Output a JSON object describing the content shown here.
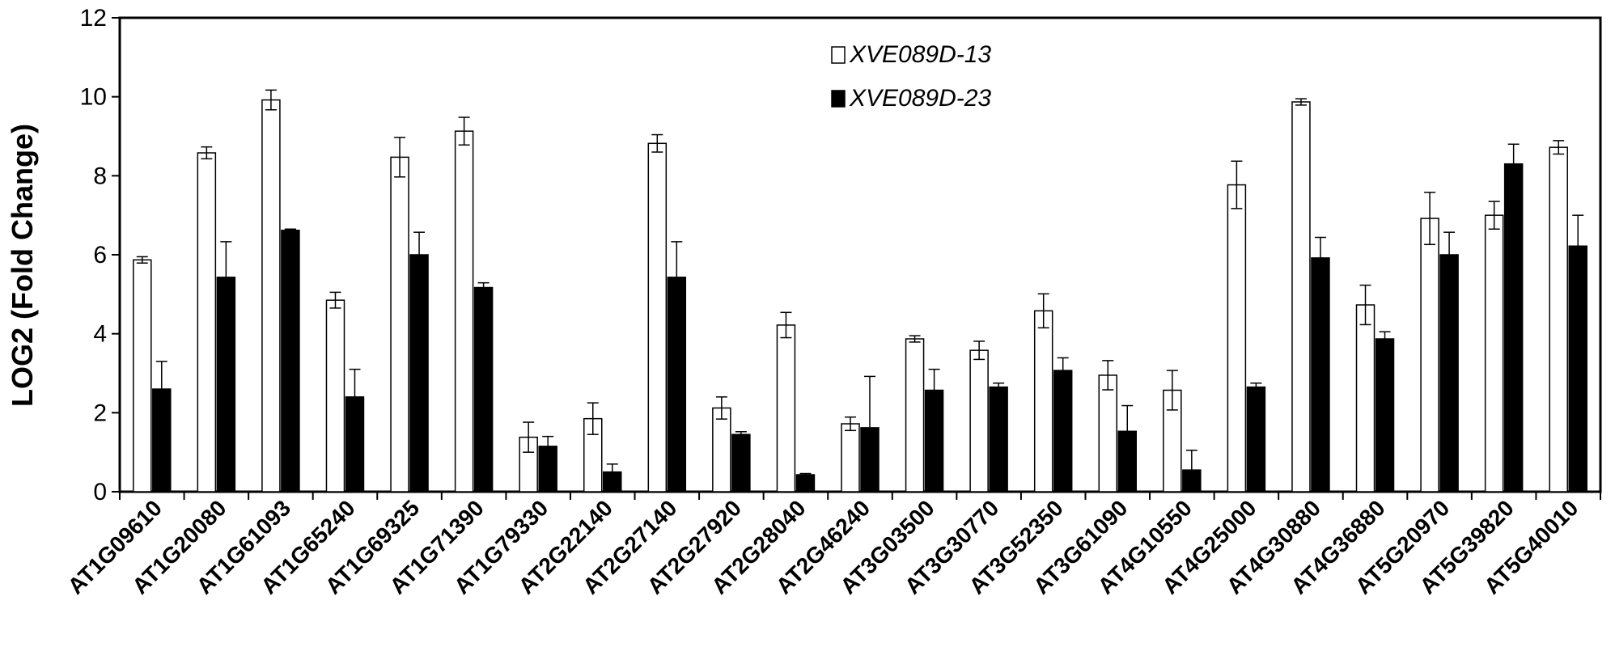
{
  "chart_data": {
    "type": "bar",
    "ylabel": "LOG2 (Fold Change)",
    "xlabel": "",
    "ylim": [
      0,
      12
    ],
    "yticks": [
      "0",
      "2",
      "4",
      "6",
      "8",
      "10",
      "12"
    ],
    "grid": false,
    "legend_position": "top-center",
    "categories": [
      "AT1G09610",
      "AT1G20080",
      "AT1G61093",
      "AT1G65240",
      "AT1G69325",
      "AT1G71390",
      "AT1G79330",
      "AT2G22140",
      "AT2G27140",
      "AT2G27920",
      "AT2G28040",
      "AT2G46240",
      "AT3G03500",
      "AT3G30770",
      "AT3G52350",
      "AT3G61090",
      "AT4G10550",
      "AT4G25000",
      "AT4G30880",
      "AT4G36880",
      "AT5G20970",
      "AT5G39820",
      "AT5G40010"
    ],
    "series": [
      {
        "name": "XVE089D-13",
        "fill": "#ffffff",
        "values": [
          5.87,
          8.58,
          9.92,
          4.85,
          8.47,
          9.13,
          1.38,
          1.85,
          8.82,
          2.12,
          4.22,
          1.72,
          3.87,
          3.58,
          4.58,
          2.95,
          2.57,
          7.77,
          9.87,
          4.73,
          6.92,
          7.0,
          8.72
        ],
        "errors": [
          0.08,
          0.15,
          0.25,
          0.2,
          0.5,
          0.35,
          0.38,
          0.4,
          0.22,
          0.28,
          0.32,
          0.17,
          0.08,
          0.23,
          0.43,
          0.37,
          0.5,
          0.6,
          0.08,
          0.5,
          0.66,
          0.35,
          0.17
        ]
      },
      {
        "name": "XVE089D-23",
        "fill": "#000000",
        "values": [
          2.6,
          5.43,
          6.62,
          2.4,
          6.0,
          5.17,
          1.15,
          0.5,
          5.43,
          1.45,
          0.43,
          1.62,
          2.57,
          2.65,
          3.07,
          1.53,
          0.55,
          2.65,
          5.92,
          3.87,
          6.0,
          8.3,
          6.22
        ],
        "errors": [
          0.7,
          0.9,
          0.03,
          0.7,
          0.57,
          0.12,
          0.25,
          0.2,
          0.9,
          0.07,
          0.03,
          1.3,
          0.53,
          0.1,
          0.32,
          0.65,
          0.5,
          0.1,
          0.52,
          0.18,
          0.57,
          0.5,
          0.78
        ]
      }
    ]
  }
}
